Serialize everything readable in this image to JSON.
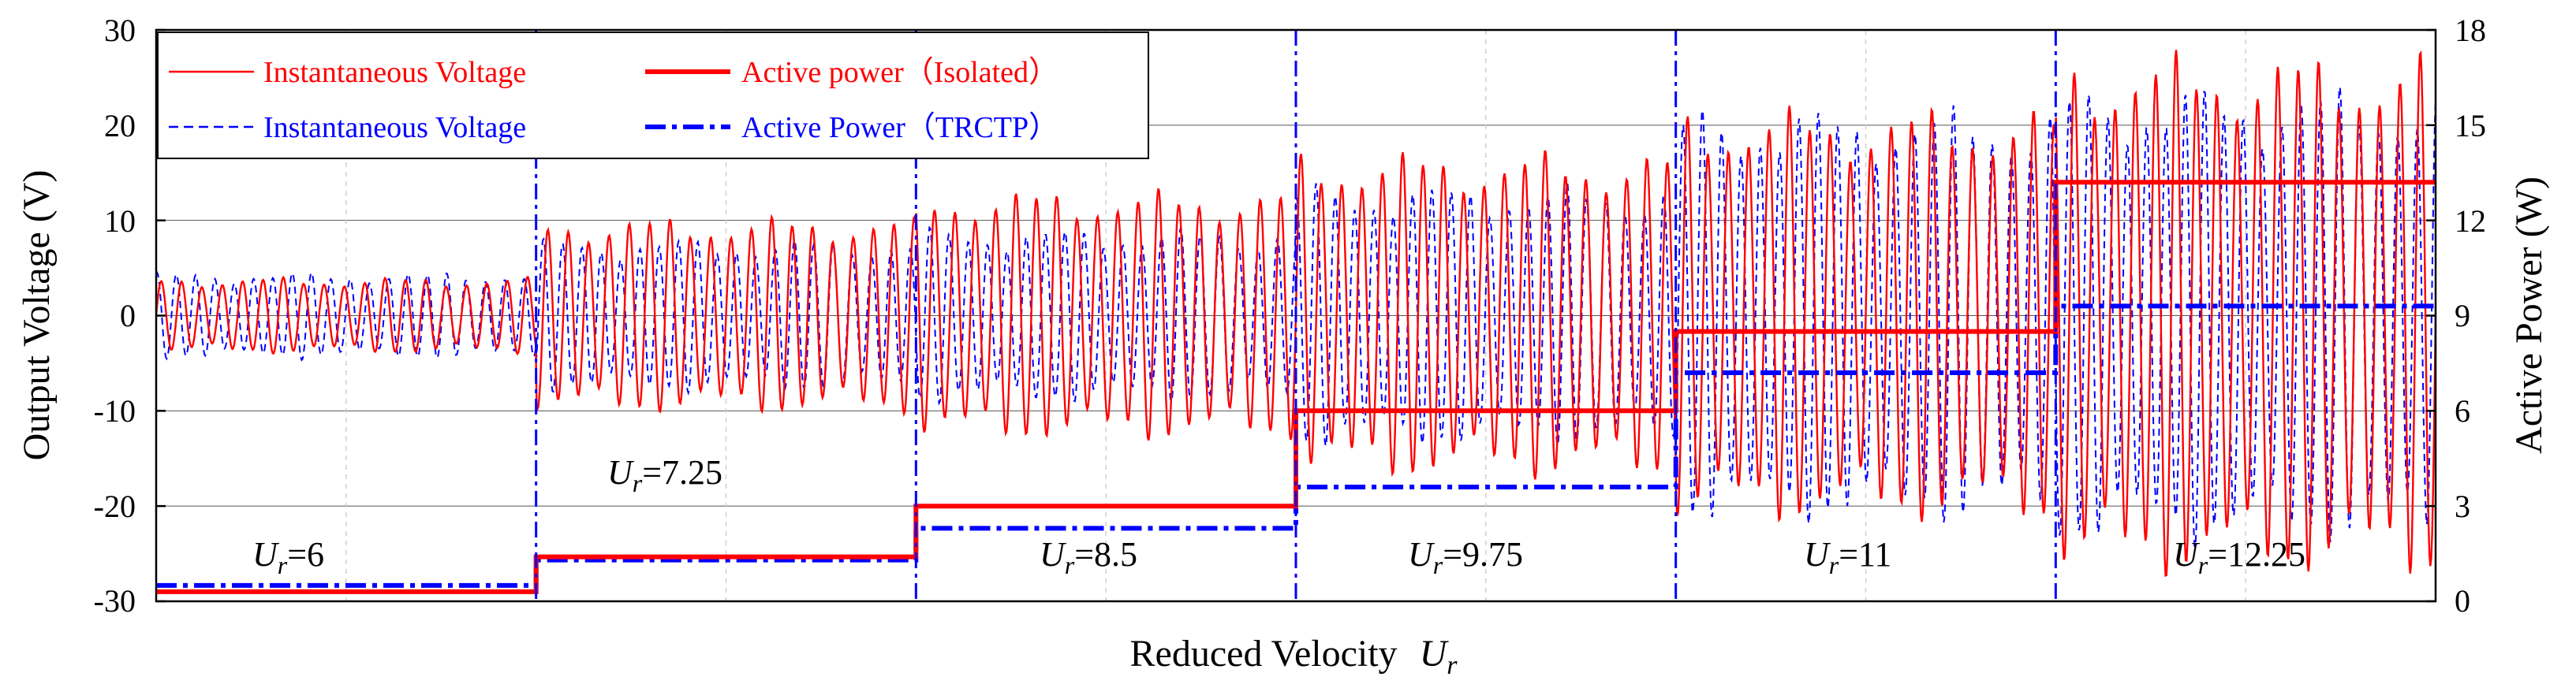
{
  "chart_data": {
    "type": "line",
    "title": "",
    "xlabel": "Reduced Velocity",
    "xlabel_symbol": "U",
    "xlabel_symbol_sub": "r",
    "ylabel": "Output Voltage  (V)",
    "ylabel_right": "Active Power  (W)",
    "ylim": [
      -30,
      30
    ],
    "ylim_right": [
      0,
      18
    ],
    "yticks": [
      "30",
      "20",
      "10",
      "0",
      "-10",
      "-20",
      "-30"
    ],
    "yticks_right": [
      "18",
      "15",
      "12",
      "9",
      "6",
      "3",
      "0"
    ],
    "grid": true,
    "legend_position": "top-left",
    "regions": [
      {
        "symbol": "U",
        "sub": "r",
        "label": "=6",
        "ur": 6
      },
      {
        "symbol": "U",
        "sub": "r",
        "label": "=7.25",
        "ur": 7.25
      },
      {
        "symbol": "U",
        "sub": "r",
        "label": "=8.5",
        "ur": 8.5
      },
      {
        "symbol": "U",
        "sub": "r",
        "label": "=9.75",
        "ur": 9.75
      },
      {
        "symbol": "U",
        "sub": "r",
        "label": "=11",
        "ur": 11
      },
      {
        "symbol": "U",
        "sub": "r",
        "label": "=12.25",
        "ur": 12.25
      }
    ],
    "series": [
      {
        "name": "Instantaneous Voltage",
        "color": "#ff0000",
        "style": "solid-thin",
        "axis": "left",
        "amplitude_per_region": [
          3.5,
          9,
          11.5,
          15,
          19,
          24
        ]
      },
      {
        "name": "Active power（Isolated）",
        "color": "#ff0000",
        "style": "solid-thick",
        "axis": "right",
        "values": [
          0.3,
          1.4,
          3.0,
          6.0,
          8.5,
          13.2
        ]
      },
      {
        "name": "Instantaneous Voltage",
        "color": "#0000ff",
        "style": "dashed-thin",
        "axis": "left",
        "amplitude_per_region": [
          4,
          7,
          8,
          12,
          19,
          21
        ]
      },
      {
        "name": "Active Power（TRCTP）",
        "color": "#0000ff",
        "style": "dashdot-thick",
        "axis": "right",
        "values": [
          0.5,
          1.3,
          2.3,
          3.6,
          7.2,
          9.3
        ]
      }
    ]
  }
}
